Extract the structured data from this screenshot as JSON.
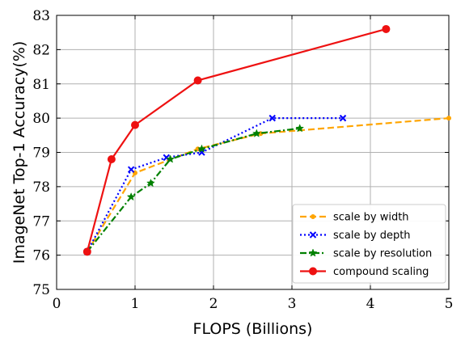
{
  "chart_data": {
    "type": "line",
    "title": "",
    "xlabel": "FLOPS (Billions)",
    "ylabel": "ImageNet Top-1 Accuracy(%)",
    "xlim": [
      0,
      5
    ],
    "ylim": [
      75,
      83
    ],
    "xticks": [
      0,
      1,
      2,
      3,
      4,
      5
    ],
    "yticks": [
      75,
      76,
      77,
      78,
      79,
      80,
      81,
      82,
      83
    ],
    "grid": true,
    "legend_position": "bottom-right",
    "series": [
      {
        "name": "scale by width",
        "color": "#ffa500",
        "line_style": "dashed",
        "marker": "dot",
        "x": [
          0.39,
          1.0,
          1.8,
          2.6,
          5.0
        ],
        "y": [
          76.1,
          78.4,
          79.1,
          79.55,
          80.0
        ]
      },
      {
        "name": "scale by depth",
        "color": "#0000ff",
        "line_style": "dotted",
        "marker": "x",
        "x": [
          0.39,
          0.95,
          1.4,
          1.85,
          2.75,
          3.65
        ],
        "y": [
          76.1,
          78.5,
          78.85,
          79.0,
          80.0,
          80.0
        ]
      },
      {
        "name": "scale by resolution",
        "color": "#008000",
        "line_style": "dashdot",
        "marker": "star",
        "x": [
          0.39,
          0.95,
          1.2,
          1.45,
          1.85,
          2.55,
          3.1
        ],
        "y": [
          76.1,
          77.7,
          78.1,
          78.8,
          79.1,
          79.55,
          79.7
        ]
      },
      {
        "name": "compound scaling",
        "color": "#ee1111",
        "line_style": "solid",
        "marker": "circle",
        "x": [
          0.39,
          0.7,
          1.0,
          1.8,
          4.2
        ],
        "y": [
          76.1,
          78.8,
          79.8,
          81.1,
          82.6
        ]
      }
    ]
  }
}
